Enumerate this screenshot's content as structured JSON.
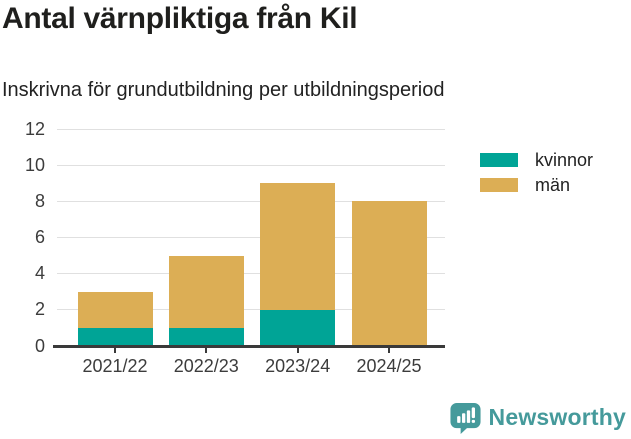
{
  "header": {
    "title": "Antal värnpliktiga från Kil",
    "subtitle": "Inskrivna för grundutbildning per utbildningsperiod"
  },
  "chart_data": {
    "type": "bar",
    "stacked": true,
    "title": "Antal värnpliktiga från Kil",
    "subtitle": "Inskrivna för grundutbildning per utbildningsperiod",
    "categories": [
      "2021/22",
      "2022/23",
      "2023/24",
      "2024/25"
    ],
    "series": [
      {
        "name": "kvinnor",
        "color": "#00a496",
        "values": [
          1,
          1,
          2,
          0
        ]
      },
      {
        "name": "män",
        "color": "#dcae55",
        "values": [
          2,
          4,
          7,
          8
        ]
      }
    ],
    "totals": [
      3,
      5,
      9,
      8
    ],
    "xlabel": "",
    "ylabel": "",
    "ylim": [
      0,
      12
    ],
    "yticks": [
      0,
      2,
      4,
      6,
      8,
      10,
      12
    ],
    "grid": true,
    "legend_position": "top-right"
  },
  "footer": {
    "brand": "Newsworthy",
    "brand_color": "#459a9b"
  }
}
